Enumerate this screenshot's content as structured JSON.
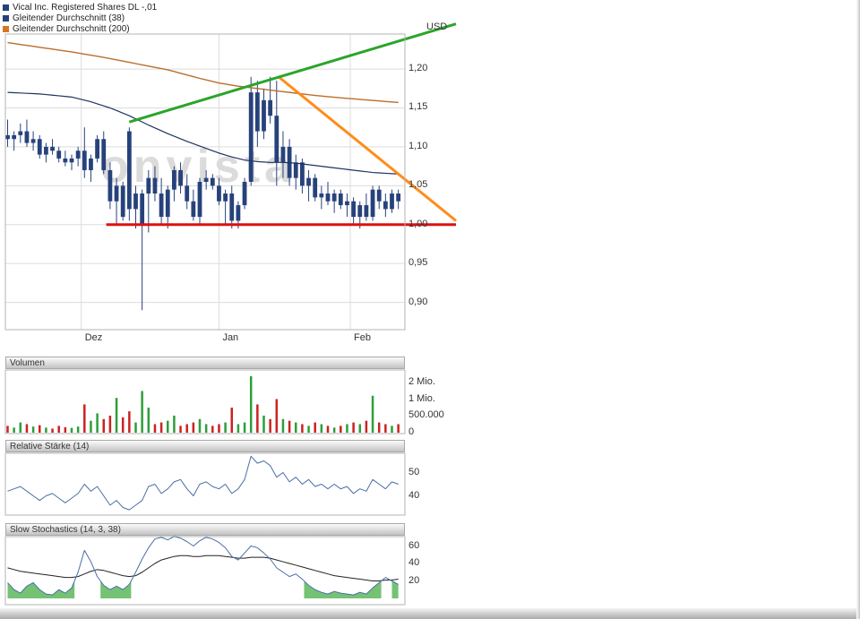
{
  "legend": {
    "items": [
      {
        "label": "Vical Inc. Registered Shares DL -,01",
        "color": "#27427b"
      },
      {
        "label": "Gleitender Durchschnitt (38)",
        "color": "#27427b"
      },
      {
        "label": "Gleitender Durchschnitt (200)",
        "color": "#d9751e"
      }
    ]
  },
  "watermark": {
    "text": "onvista"
  },
  "chart_data": [
    {
      "type": "candlestick",
      "title": "Vical Inc. Registered Shares DL -,01",
      "unit_label": "USD",
      "ylim": [
        0.865,
        1.245
      ],
      "yticks": [
        {
          "v": 1.2,
          "label": "1,20"
        },
        {
          "v": 1.15,
          "label": "1,15"
        },
        {
          "v": 1.1,
          "label": "1,10"
        },
        {
          "v": 1.05,
          "label": "1,05"
        },
        {
          "v": 1.0,
          "label": "1,00"
        },
        {
          "v": 0.95,
          "label": "0,95"
        },
        {
          "v": 0.9,
          "label": "0,90"
        }
      ],
      "xticks": [
        {
          "i": 11.5,
          "label": "Dez"
        },
        {
          "i": 33,
          "label": "Jan"
        },
        {
          "i": 53.5,
          "label": "Feb"
        }
      ],
      "candle_color": "#27427b",
      "candles": [
        [
          1.115,
          1.135,
          1.1,
          1.11
        ],
        [
          1.11,
          1.12,
          1.095,
          1.115
        ],
        [
          1.115,
          1.13,
          1.105,
          1.12
        ],
        [
          1.12,
          1.135,
          1.1,
          1.105
        ],
        [
          1.105,
          1.12,
          1.095,
          1.11
        ],
        [
          1.11,
          1.115,
          1.085,
          1.09
        ],
        [
          1.09,
          1.105,
          1.08,
          1.1
        ],
        [
          1.1,
          1.11,
          1.09,
          1.095
        ],
        [
          1.095,
          1.1,
          1.08,
          1.085
        ],
        [
          1.085,
          1.095,
          1.075,
          1.08
        ],
        [
          1.08,
          1.09,
          1.07,
          1.085
        ],
        [
          1.085,
          1.1,
          1.075,
          1.095
        ],
        [
          1.095,
          1.125,
          1.06,
          1.07
        ],
        [
          1.07,
          1.09,
          1.055,
          1.085
        ],
        [
          1.085,
          1.115,
          1.08,
          1.11
        ],
        [
          1.11,
          1.12,
          1.065,
          1.07
        ],
        [
          1.07,
          1.08,
          1.02,
          1.03
        ],
        [
          1.03,
          1.06,
          1.0,
          1.05
        ],
        [
          1.05,
          1.055,
          1.005,
          1.01
        ],
        [
          1.12,
          1.125,
          1.005,
          1.02
        ],
        [
          1.02,
          1.05,
          0.995,
          1.04
        ],
        [
          1.0,
          1.045,
          0.89,
          1.04
        ],
        [
          1.04,
          1.07,
          0.99,
          1.06
        ],
        [
          1.06,
          1.075,
          1.03,
          1.04
        ],
        [
          1.04,
          1.06,
          1.0,
          1.01
        ],
        [
          1.01,
          1.05,
          0.995,
          1.045
        ],
        [
          1.045,
          1.075,
          1.03,
          1.07
        ],
        [
          1.07,
          1.08,
          1.04,
          1.05
        ],
        [
          1.05,
          1.065,
          1.02,
          1.03
        ],
        [
          1.03,
          1.045,
          1.005,
          1.01
        ],
        [
          1.01,
          1.06,
          1.0,
          1.055
        ],
        [
          1.055,
          1.07,
          1.045,
          1.06
        ],
        [
          1.06,
          1.065,
          1.045,
          1.05
        ],
        [
          1.05,
          1.06,
          1.025,
          1.03
        ],
        [
          1.03,
          1.045,
          1.0,
          1.04
        ],
        [
          1.04,
          1.05,
          0.995,
          1.005
        ],
        [
          1.005,
          1.03,
          0.995,
          1.025
        ],
        [
          1.025,
          1.06,
          1.02,
          1.055
        ],
        [
          1.055,
          1.19,
          1.05,
          1.17
        ],
        [
          1.17,
          1.185,
          1.1,
          1.12
        ],
        [
          1.12,
          1.175,
          1.11,
          1.16
        ],
        [
          1.16,
          1.19,
          1.13,
          1.14
        ],
        [
          1.14,
          1.185,
          1.05,
          1.08
        ],
        [
          1.08,
          1.12,
          1.06,
          1.1
        ],
        [
          1.1,
          1.11,
          1.05,
          1.06
        ],
        [
          1.06,
          1.09,
          1.045,
          1.08
        ],
        [
          1.08,
          1.085,
          1.04,
          1.05
        ],
        [
          1.05,
          1.07,
          1.03,
          1.06
        ],
        [
          1.06,
          1.065,
          1.03,
          1.035
        ],
        [
          1.035,
          1.05,
          1.02,
          1.04
        ],
        [
          1.04,
          1.055,
          1.025,
          1.03
        ],
        [
          1.03,
          1.045,
          1.015,
          1.04
        ],
        [
          1.04,
          1.045,
          1.02,
          1.025
        ],
        [
          1.025,
          1.04,
          1.01,
          1.03
        ],
        [
          1.03,
          1.035,
          1.0,
          1.01
        ],
        [
          1.01,
          1.03,
          0.995,
          1.025
        ],
        [
          1.025,
          1.04,
          1.005,
          1.01
        ],
        [
          1.01,
          1.05,
          1.005,
          1.045
        ],
        [
          1.045,
          1.05,
          1.02,
          1.03
        ],
        [
          1.03,
          1.04,
          1.01,
          1.02
        ],
        [
          1.02,
          1.045,
          1.015,
          1.04
        ],
        [
          1.04,
          1.045,
          1.02,
          1.03
        ]
      ],
      "ma38": {
        "color": "#1d3461",
        "values": [
          1.17,
          1.1696,
          1.1692,
          1.1688,
          1.1684,
          1.168,
          1.1672,
          1.1664,
          1.1656,
          1.1648,
          1.164,
          1.162,
          1.16,
          1.158,
          1.1553,
          1.1527,
          1.15,
          1.1467,
          1.1433,
          1.14,
          1.136,
          1.132,
          1.128,
          1.1243,
          1.1207,
          1.117,
          1.1137,
          1.1103,
          1.107,
          1.104,
          1.101,
          1.098,
          1.095,
          1.092,
          1.0895,
          1.087,
          1.085,
          1.083,
          1.082,
          1.081,
          1.0805,
          1.08,
          1.08,
          1.08,
          1.0795,
          1.079,
          1.078,
          1.077,
          1.076,
          1.075,
          1.074,
          1.073,
          1.072,
          1.071,
          1.07,
          1.069,
          1.068,
          1.067,
          1.0665,
          1.066,
          1.0655,
          1.065
        ]
      },
      "ma200": {
        "color": "#bc6d2a",
        "values": [
          1.234,
          1.2328,
          1.2316,
          1.2304,
          1.2292,
          1.228,
          1.2268,
          1.2256,
          1.2244,
          1.2232,
          1.222,
          1.2206,
          1.2192,
          1.2178,
          1.2164,
          1.215,
          1.2134,
          1.2118,
          1.2102,
          1.2086,
          1.207,
          1.2054,
          1.2038,
          1.2022,
          1.2006,
          1.199,
          1.1968,
          1.1946,
          1.1924,
          1.1902,
          1.188,
          1.186,
          1.184,
          1.182,
          1.1807,
          1.1793,
          1.178,
          1.177,
          1.176,
          1.175,
          1.174,
          1.173,
          1.172,
          1.171,
          1.17,
          1.169,
          1.168,
          1.167,
          1.166,
          1.1653,
          1.1645,
          1.1638,
          1.163,
          1.1623,
          1.1617,
          1.161,
          1.1603,
          1.1597,
          1.159,
          1.1583,
          1.1577,
          1.157
        ]
      },
      "trendlines": [
        {
          "name": "horizontal-support",
          "color": "#dd1111",
          "width": 3,
          "points": [
            [
              15.4,
              1.0
            ],
            [
              70,
              1.0
            ]
          ]
        },
        {
          "name": "falling-trendline",
          "color": "#ff8c1a",
          "width": 3,
          "points": [
            [
              42.3,
              1.19
            ],
            [
              70,
              1.005
            ]
          ]
        },
        {
          "name": "rising-trendline",
          "color": "#2aa52a",
          "width": 3,
          "points": [
            [
              19,
              1.132
            ],
            [
              70,
              1.258
            ]
          ]
        }
      ]
    },
    {
      "type": "bar",
      "title": "Volumen",
      "up_color": "#2e9e3a",
      "down_color": "#cc2222",
      "yticks": [
        {
          "v": 2000000,
          "label": "2 Mio."
        },
        {
          "v": 1000000,
          "label": "1 Mio."
        },
        {
          "v": 500000,
          "label": "500.000"
        },
        {
          "v": 0,
          "label": "0"
        }
      ],
      "values": [
        200000,
        150000,
        300000,
        250000,
        180000,
        220000,
        150000,
        120000,
        200000,
        160000,
        140000,
        180000,
        800000,
        350000,
        550000,
        400000,
        500000,
        1050000,
        450000,
        600000,
        300000,
        1400000,
        700000,
        250000,
        300000,
        350000,
        500000,
        200000,
        250000,
        300000,
        400000,
        250000,
        200000,
        250000,
        300000,
        700000,
        250000,
        300000,
        2600000,
        800000,
        500000,
        400000,
        1000000,
        400000,
        350000,
        300000,
        250000,
        200000,
        300000,
        250000,
        200000,
        150000,
        200000,
        250000,
        300000,
        250000,
        350000,
        1150000,
        300000,
        250000,
        200000,
        250000
      ]
    },
    {
      "type": "line",
      "title": "Relative Stärke (14)",
      "color": "#4a6fa5",
      "yticks": [
        {
          "v": 50,
          "label": "50"
        },
        {
          "v": 40,
          "label": "40"
        }
      ],
      "values": [
        42,
        43,
        44,
        42,
        40,
        38,
        40,
        41,
        39,
        37,
        39,
        41,
        45,
        42,
        44,
        40,
        36,
        38,
        35,
        34,
        36,
        38,
        44,
        45,
        41,
        43,
        46,
        47,
        43,
        40,
        45,
        46,
        44,
        43,
        45,
        41,
        43,
        47,
        57,
        54,
        55,
        53,
        48,
        50,
        46,
        48,
        45,
        47,
        44,
        45,
        43,
        45,
        43,
        44,
        41,
        43,
        42,
        47,
        45,
        43,
        46,
        45
      ]
    },
    {
      "type": "line",
      "title": "Slow Stochastics (14, 3, 38)",
      "yticks": [
        {
          "v": 60,
          "label": "60"
        },
        {
          "v": 40,
          "label": "40"
        },
        {
          "v": 20,
          "label": "20"
        }
      ],
      "series": [
        {
          "name": "fast",
          "color": "#4a6fa5",
          "values": [
            18,
            10,
            6,
            14,
            18,
            10,
            5,
            4,
            10,
            6,
            12,
            30,
            55,
            42,
            25,
            15,
            10,
            14,
            10,
            16,
            30,
            45,
            58,
            68,
            70,
            67,
            71,
            69,
            65,
            60,
            66,
            70,
            68,
            64,
            58,
            48,
            44,
            52,
            60,
            58,
            52,
            45,
            35,
            30,
            25,
            28,
            22,
            15,
            10,
            7,
            5,
            8,
            6,
            5,
            4,
            7,
            5,
            12,
            18,
            24,
            20,
            16
          ]
        },
        {
          "name": "slow",
          "color": "#222222",
          "values": [
            35,
            33,
            31,
            30,
            29,
            28,
            27,
            26,
            25,
            24,
            24,
            25,
            28,
            31,
            33,
            32,
            30,
            28,
            26,
            25,
            26,
            30,
            35,
            40,
            44,
            46,
            48,
            49,
            49,
            48,
            48,
            49,
            49,
            49,
            48,
            47,
            46,
            46,
            47,
            47,
            47,
            46,
            44,
            42,
            40,
            38,
            36,
            34,
            32,
            30,
            28,
            26,
            25,
            24,
            23,
            22,
            21,
            20,
            20,
            21,
            21,
            22
          ]
        }
      ],
      "oversold_fill": {
        "threshold": 20,
        "color": "#66bb66"
      }
    }
  ]
}
